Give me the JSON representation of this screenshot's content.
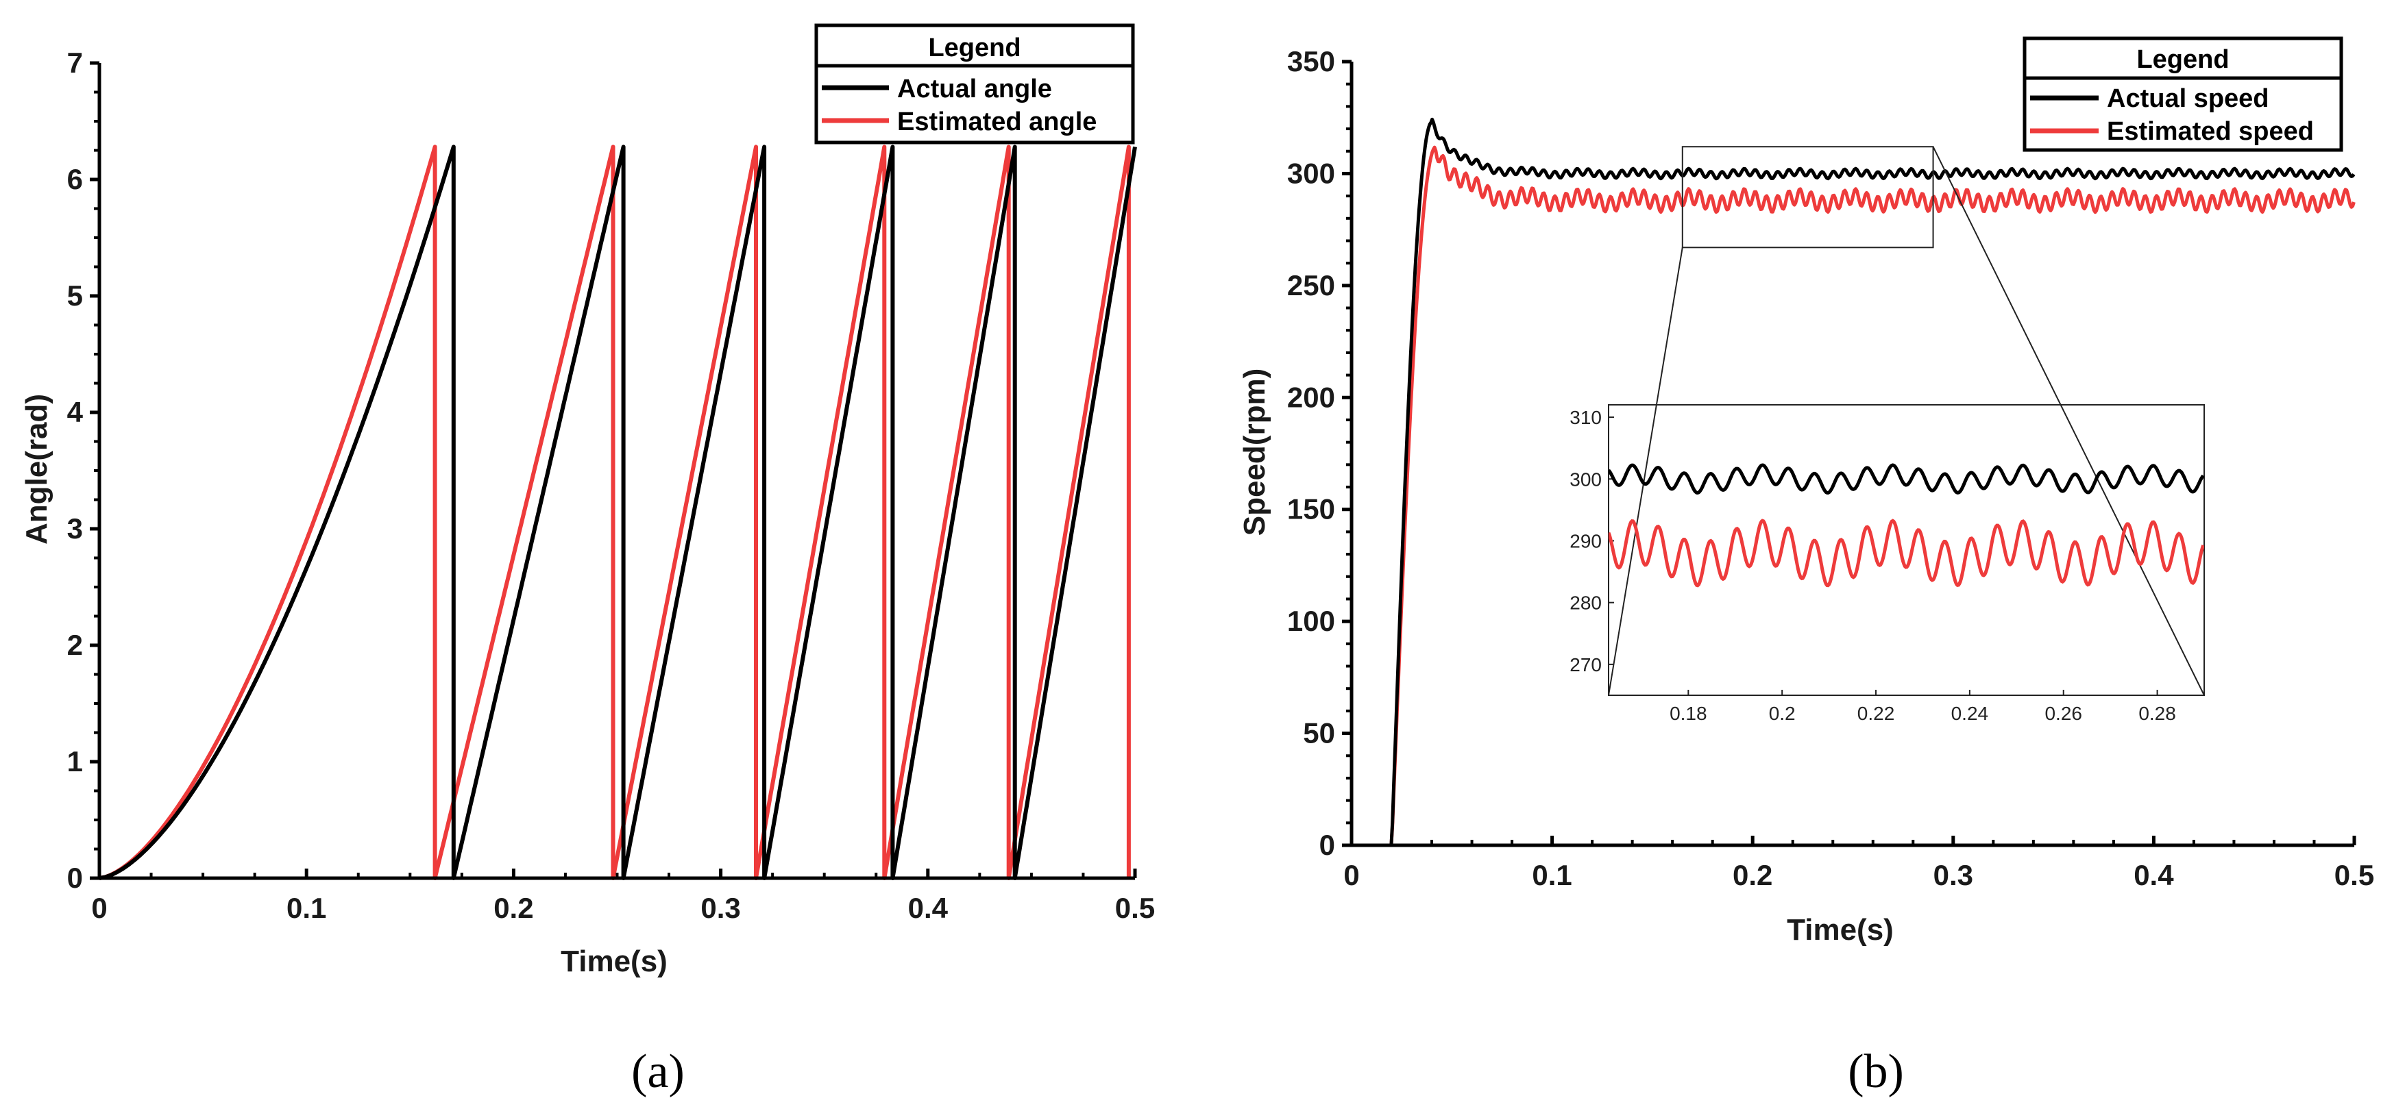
{
  "figure_labels": {
    "a": "(a)",
    "b": "(b)"
  },
  "colors": {
    "actual": "#000000",
    "estimated": "#ee3b3b"
  },
  "chart_data": [
    {
      "id": "a",
      "type": "line",
      "title": "",
      "xlabel": "Time(s)",
      "ylabel": "Angle(rad)",
      "xlim": [
        0,
        0.5
      ],
      "ylim": [
        0,
        7
      ],
      "xticks": [
        0,
        0.1,
        0.2,
        0.3,
        0.4,
        0.5
      ],
      "xtick_labels": [
        "0",
        "0.1",
        "0.2",
        "0.3",
        "0.4",
        "0.5"
      ],
      "yticks": [
        0,
        1,
        2,
        3,
        4,
        5,
        6,
        7
      ],
      "ytick_labels": [
        "0",
        "1",
        "2",
        "3",
        "4",
        "5",
        "6",
        "7"
      ],
      "legend": {
        "title": "Legend",
        "position": "top-right",
        "entries": [
          "Actual angle",
          "Estimated angle"
        ]
      },
      "series": [
        {
          "name": "Actual angle",
          "color": "#000000",
          "resets": [
            0.171,
            0.253,
            0.321,
            0.383,
            0.442,
            0.5
          ],
          "peak": 6.28
        },
        {
          "name": "Estimated angle",
          "color": "#ee3b3b",
          "resets": [
            0.162,
            0.248,
            0.317,
            0.379,
            0.439,
            0.497
          ],
          "peak": 6.28
        }
      ]
    },
    {
      "id": "b",
      "type": "line",
      "title": "",
      "xlabel": "Time(s)",
      "ylabel": "Speed(rpm)",
      "xlim": [
        0,
        0.5
      ],
      "ylim": [
        0,
        350
      ],
      "xticks": [
        0,
        0.1,
        0.2,
        0.3,
        0.4,
        0.5
      ],
      "xtick_labels": [
        "0",
        "0.1",
        "0.2",
        "0.3",
        "0.4",
        "0.5"
      ],
      "yticks": [
        0,
        50,
        100,
        150,
        200,
        250,
        300,
        350
      ],
      "ytick_labels": [
        "0",
        "50",
        "100",
        "150",
        "200",
        "250",
        "300",
        "350"
      ],
      "legend": {
        "title": "Legend",
        "position": "top-right",
        "entries": [
          "Actual speed",
          "Estimated speed"
        ]
      },
      "series": [
        {
          "name": "Actual speed",
          "color": "#000000",
          "start": 0.02,
          "peak_time": 0.04,
          "peak": 323,
          "steady": 300,
          "ripple": 1.5
        },
        {
          "name": "Estimated speed",
          "color": "#ee3b3b",
          "start": 0.02,
          "peak_time": 0.042,
          "peak": 312,
          "steady": 288,
          "ripple": 3.5
        }
      ],
      "zoom_region": {
        "xlim": [
          0.165,
          0.29
        ],
        "ylim": [
          267,
          312
        ]
      },
      "inset": {
        "xlim": [
          0.163,
          0.29
        ],
        "ylim": [
          265,
          312
        ],
        "xticks": [
          0.18,
          0.2,
          0.22,
          0.24,
          0.26,
          0.28
        ],
        "xtick_labels": [
          "0.18",
          "0.2",
          "0.22",
          "0.24",
          "0.26",
          "0.28"
        ],
        "yticks": [
          270,
          280,
          290,
          300,
          310
        ],
        "ytick_labels": [
          "270",
          "280",
          "290",
          "300",
          "310"
        ]
      }
    }
  ]
}
